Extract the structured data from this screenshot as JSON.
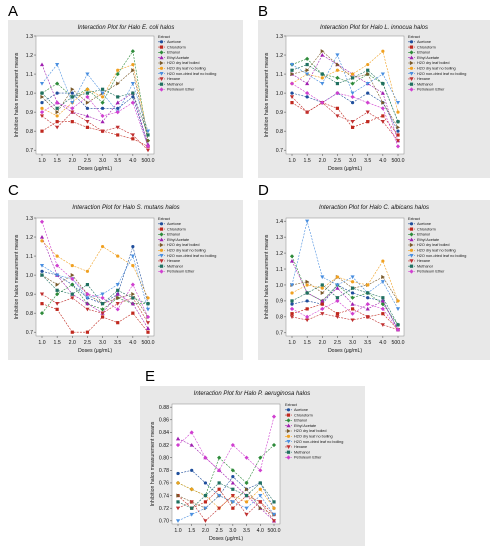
{
  "panel_letters": [
    "A",
    "B",
    "C",
    "D",
    "E"
  ],
  "legend_header": "Extract",
  "legend_items": [
    {
      "name": "Acetone",
      "color": "#1f4e9c",
      "marker": "circle"
    },
    {
      "name": "Chloroform",
      "color": "#c0281e",
      "marker": "square"
    },
    {
      "name": "Ethanol",
      "color": "#2e8b3a",
      "marker": "diamond"
    },
    {
      "name": "Ethyl Acetate",
      "color": "#a020b0",
      "marker": "triangle-up"
    },
    {
      "name": "H2O dry leaf boiled",
      "color": "#7a5a2a",
      "marker": "triangle-right"
    },
    {
      "name": "H2O dry leaf no boiling",
      "color": "#f0a020",
      "marker": "circle"
    },
    {
      "name": "H2O non-dried leaf no boiling",
      "color": "#4a8fe0",
      "marker": "triangle-down"
    },
    {
      "name": "Hexane",
      "color": "#c03030",
      "marker": "triangle-down"
    },
    {
      "name": "Methanol",
      "color": "#207060",
      "marker": "square"
    },
    {
      "name": "Petroleum Ether",
      "color": "#d040d0",
      "marker": "diamond"
    }
  ],
  "xlabel": "Doses (μg/mL)",
  "ylabel": "Inhibition halos measurement means",
  "chart_data": [
    {
      "type": "line",
      "title": "Interaction Plot for Halo E. coli halos",
      "categories": [
        "1.0",
        "1.5",
        "2.0",
        "2.5",
        "3.0",
        "3.5",
        "4.0",
        "500.0"
      ],
      "yticks": [
        0.7,
        0.8,
        0.9,
        1.0,
        1.1,
        1.2,
        1.3
      ],
      "ylim": [
        0.68,
        1.3
      ],
      "series": [
        {
          "name": "Acetone",
          "values": [
            0.95,
            1.0,
            1.0,
            0.92,
            0.92,
            0.92,
            0.98,
            0.72
          ]
        },
        {
          "name": "Chloroform",
          "values": [
            0.8,
            0.85,
            0.85,
            0.82,
            0.8,
            0.78,
            0.76,
            0.72
          ]
        },
        {
          "name": "Ethanol",
          "values": [
            1.0,
            1.05,
            0.98,
            1.02,
            0.95,
            1.1,
            1.22,
            0.75
          ]
        },
        {
          "name": "Ethyl Acetate",
          "values": [
            1.15,
            0.95,
            0.9,
            0.88,
            0.85,
            0.95,
            1.0,
            0.73
          ]
        },
        {
          "name": "H2O dry leaf boiled",
          "values": [
            0.98,
            0.9,
            1.02,
            0.95,
            1.0,
            1.05,
            1.12,
            0.75
          ]
        },
        {
          "name": "H2O dry leaf no boiling",
          "values": [
            0.92,
            0.88,
            0.95,
            1.02,
            0.98,
            1.12,
            1.15,
            0.78
          ]
        },
        {
          "name": "H2O non-dried leaf no boiling",
          "values": [
            1.05,
            1.15,
            0.95,
            1.1,
            1.0,
            0.9,
            1.05,
            0.8
          ]
        },
        {
          "name": "Hexane",
          "values": [
            0.88,
            0.82,
            0.9,
            0.85,
            0.8,
            0.82,
            0.78,
            0.7
          ]
        },
        {
          "name": "Methanol",
          "values": [
            1.0,
            0.92,
            0.98,
            1.0,
            1.02,
            0.98,
            1.0,
            0.78
          ]
        },
        {
          "name": "Petroleum Ether",
          "values": [
            0.9,
            0.95,
            0.92,
            0.98,
            0.88,
            0.9,
            0.95,
            0.72
          ]
        }
      ]
    },
    {
      "type": "line",
      "title": "Interaction Plot for Halo L. innocua halos",
      "categories": [
        "1.0",
        "1.5",
        "2.0",
        "2.5",
        "3.0",
        "3.5",
        "4.0",
        "500.0"
      ],
      "yticks": [
        0.7,
        0.8,
        0.9,
        1.0,
        1.1,
        1.2,
        1.3
      ],
      "ylim": [
        0.68,
        1.3
      ],
      "series": [
        {
          "name": "Acetone",
          "values": [
            1.0,
            0.98,
            0.95,
            1.0,
            0.95,
            1.0,
            0.95,
            0.8
          ]
        },
        {
          "name": "Chloroform",
          "values": [
            0.95,
            0.9,
            0.95,
            0.92,
            0.82,
            0.85,
            0.88,
            0.78
          ]
        },
        {
          "name": "Ethanol",
          "values": [
            1.15,
            1.18,
            1.1,
            1.08,
            1.05,
            1.1,
            1.05,
            0.85
          ]
        },
        {
          "name": "Ethyl Acetate",
          "values": [
            1.1,
            1.05,
            1.2,
            1.15,
            1.1,
            1.05,
            1.0,
            0.75
          ]
        },
        {
          "name": "H2O dry leaf boiled",
          "values": [
            1.1,
            1.12,
            1.22,
            1.15,
            1.08,
            1.1,
            0.95,
            0.82
          ]
        },
        {
          "name": "H2O dry leaf no boiling",
          "values": [
            1.05,
            1.1,
            1.08,
            1.12,
            1.1,
            1.15,
            1.22,
            0.9
          ]
        },
        {
          "name": "H2O non-dried leaf no boiling",
          "values": [
            1.15,
            1.1,
            1.05,
            1.2,
            1.0,
            1.05,
            1.1,
            0.95
          ]
        },
        {
          "name": "Hexane",
          "values": [
            0.98,
            0.9,
            0.95,
            0.88,
            0.85,
            0.9,
            0.85,
            0.75
          ]
        },
        {
          "name": "Methanol",
          "values": [
            1.12,
            1.15,
            1.1,
            1.05,
            1.08,
            1.12,
            1.05,
            0.85
          ]
        },
        {
          "name": "Petroleum Ether",
          "values": [
            1.05,
            1.0,
            0.95,
            1.0,
            0.98,
            0.95,
            0.92,
            0.72
          ]
        }
      ]
    },
    {
      "type": "line",
      "title": "Interaction Plot for Halo S. mutans halos",
      "categories": [
        "1.0",
        "1.5",
        "2.0",
        "2.5",
        "3.0",
        "3.5",
        "4.0",
        "500.0"
      ],
      "yticks": [
        0.7,
        0.8,
        0.9,
        1.0,
        1.1,
        1.2,
        1.3
      ],
      "ylim": [
        0.68,
        1.3
      ],
      "series": [
        {
          "name": "Acetone",
          "values": [
            1.02,
            1.0,
            0.95,
            0.88,
            0.85,
            0.9,
            1.15,
            0.85
          ]
        },
        {
          "name": "Chloroform",
          "values": [
            0.85,
            0.82,
            0.7,
            0.7,
            0.78,
            0.75,
            0.8,
            0.7
          ]
        },
        {
          "name": "Ethanol",
          "values": [
            0.8,
            0.9,
            0.95,
            0.85,
            0.82,
            0.88,
            0.85,
            0.85
          ]
        },
        {
          "name": "Ethyl Acetate",
          "values": [
            1.2,
            1.0,
            0.9,
            0.85,
            0.8,
            0.9,
            0.85,
            0.72
          ]
        },
        {
          "name": "H2O dry leaf boiled",
          "values": [
            1.0,
            0.95,
            1.0,
            0.9,
            0.85,
            0.88,
            0.9,
            0.78
          ]
        },
        {
          "name": "H2O dry leaf no boiling",
          "values": [
            1.18,
            1.1,
            1.05,
            1.02,
            1.15,
            1.1,
            1.05,
            0.88
          ]
        },
        {
          "name": "H2O non-dried leaf no boiling",
          "values": [
            1.05,
            1.0,
            0.98,
            0.88,
            0.9,
            0.95,
            1.1,
            0.82
          ]
        },
        {
          "name": "Hexane",
          "values": [
            0.9,
            0.85,
            0.88,
            0.82,
            0.8,
            0.85,
            0.88,
            0.75
          ]
        },
        {
          "name": "Methanol",
          "values": [
            1.0,
            0.92,
            0.9,
            0.95,
            0.85,
            0.92,
            0.88,
            0.85
          ]
        },
        {
          "name": "Petroleum Ether",
          "values": [
            1.28,
            1.05,
            0.98,
            0.9,
            0.88,
            0.82,
            0.95,
            0.78
          ]
        }
      ]
    },
    {
      "type": "line",
      "title": "Interaction Plot for Halo C. albicans halos",
      "categories": [
        "1.0",
        "1.5",
        "2.0",
        "2.5",
        "3.0",
        "3.5",
        "4.0",
        "500.0"
      ],
      "yticks": [
        0.7,
        0.8,
        0.9,
        1.0,
        1.1,
        1.2,
        1.3,
        1.4
      ],
      "ylim": [
        0.68,
        1.42
      ],
      "series": [
        {
          "name": "Acetone",
          "values": [
            0.88,
            0.9,
            0.88,
            1.0,
            0.95,
            0.92,
            0.9,
            0.72
          ]
        },
        {
          "name": "Chloroform",
          "values": [
            0.82,
            0.85,
            0.88,
            0.82,
            0.85,
            0.8,
            0.82,
            0.72
          ]
        },
        {
          "name": "Ethanol",
          "values": [
            1.18,
            0.95,
            0.9,
            1.0,
            0.92,
            0.95,
            0.88,
            0.75
          ]
        },
        {
          "name": "Ethyl Acetate",
          "values": [
            1.15,
            0.95,
            0.9,
            0.98,
            0.88,
            0.85,
            0.9,
            0.72
          ]
        },
        {
          "name": "H2O dry leaf boiled",
          "values": [
            1.0,
            1.02,
            0.95,
            1.05,
            0.98,
            1.0,
            1.05,
            0.9
          ]
        },
        {
          "name": "H2O dry leaf no boiling",
          "values": [
            0.95,
            1.0,
            0.98,
            1.05,
            1.02,
            1.0,
            1.15,
            0.9
          ]
        },
        {
          "name": "H2O non-dried leaf no boiling",
          "values": [
            1.0,
            1.4,
            1.05,
            1.0,
            1.05,
            0.95,
            1.02,
            0.85
          ]
        },
        {
          "name": "Hexane",
          "values": [
            0.8,
            0.78,
            0.82,
            0.8,
            0.78,
            0.8,
            0.75,
            0.72
          ]
        },
        {
          "name": "Methanol",
          "values": [
            0.9,
            0.95,
            1.0,
            0.92,
            0.98,
            0.95,
            0.92,
            0.75
          ]
        },
        {
          "name": "Petroleum Ether",
          "values": [
            0.85,
            0.8,
            0.85,
            0.9,
            0.82,
            0.88,
            0.85,
            0.72
          ]
        }
      ]
    },
    {
      "type": "line",
      "title": "Interaction Plot for Halo P. aeruginosa halos",
      "categories": [
        "1.0",
        "1.5",
        "2.0",
        "2.5",
        "3.0",
        "3.5",
        "4.0",
        "500.0"
      ],
      "yticks": [
        0.7,
        0.72,
        0.74,
        0.76,
        0.78,
        0.8,
        0.82,
        0.84,
        0.86,
        0.88
      ],
      "ylim": [
        0.695,
        0.885
      ],
      "series": [
        {
          "name": "Acetone",
          "values": [
            0.775,
            0.78,
            0.76,
            0.74,
            0.77,
            0.75,
            0.76,
            0.72
          ]
        },
        {
          "name": "Chloroform",
          "values": [
            0.74,
            0.72,
            0.73,
            0.75,
            0.72,
            0.74,
            0.73,
            0.71
          ]
        },
        {
          "name": "Ethanol",
          "values": [
            0.76,
            0.75,
            0.74,
            0.8,
            0.78,
            0.76,
            0.8,
            0.82
          ]
        },
        {
          "name": "Ethyl Acetate",
          "values": [
            0.83,
            0.82,
            0.8,
            0.78,
            0.76,
            0.74,
            0.72,
            0.7
          ]
        },
        {
          "name": "H2O dry leaf boiled",
          "values": [
            0.74,
            0.73,
            0.72,
            0.74,
            0.73,
            0.75,
            0.72,
            0.71
          ]
        },
        {
          "name": "H2O dry leaf no boiling",
          "values": [
            0.76,
            0.75,
            0.74,
            0.72,
            0.74,
            0.73,
            0.75,
            0.72
          ]
        },
        {
          "name": "H2O non-dried leaf no boiling",
          "values": [
            0.7,
            0.71,
            0.72,
            0.74,
            0.73,
            0.72,
            0.74,
            0.71
          ]
        },
        {
          "name": "Hexane",
          "values": [
            0.72,
            0.73,
            0.7,
            0.72,
            0.74,
            0.71,
            0.73,
            0.7
          ]
        },
        {
          "name": "Methanol",
          "values": [
            0.73,
            0.72,
            0.74,
            0.76,
            0.75,
            0.74,
            0.76,
            0.73
          ]
        },
        {
          "name": "Petroleum Ether",
          "values": [
            0.82,
            0.84,
            0.8,
            0.78,
            0.82,
            0.8,
            0.78,
            0.865
          ]
        }
      ]
    }
  ]
}
